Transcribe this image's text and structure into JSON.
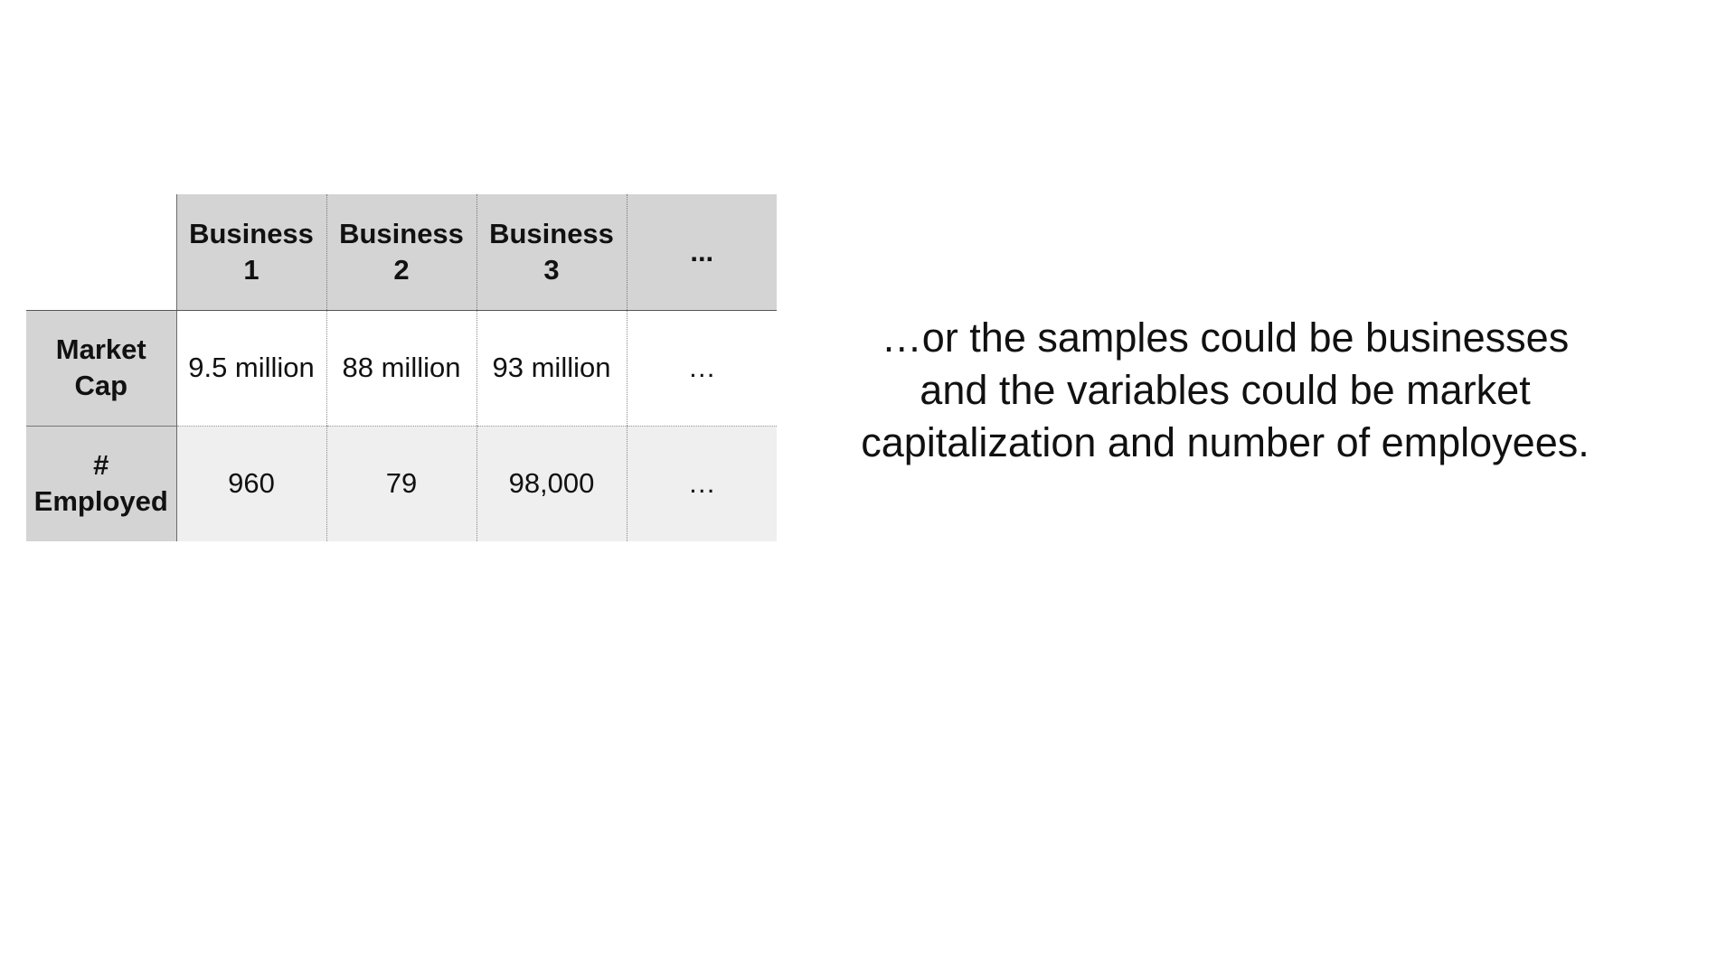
{
  "table": {
    "columns": [
      "Business\n1",
      "Business\n2",
      "Business\n3",
      "..."
    ],
    "rows": [
      {
        "label": "Market\nCap",
        "cells": [
          "9.5 million",
          "88 million",
          "93 million",
          "…"
        ]
      },
      {
        "label": "#\nEmployed",
        "cells": [
          "960",
          "79",
          "98,000",
          "…"
        ]
      }
    ]
  },
  "caption": {
    "lines": [
      "…or the samples could be businesses",
      "and the variables could be market",
      "capitalization and number of employees."
    ]
  }
}
